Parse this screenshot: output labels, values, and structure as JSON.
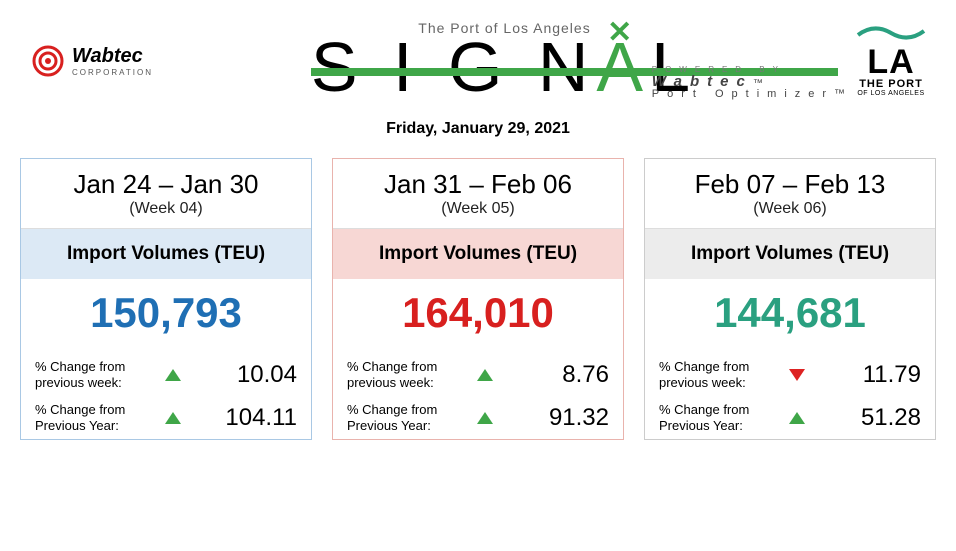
{
  "header": {
    "subtitle": "The Port of Los Angeles",
    "title_plain": "SIGNAL",
    "powered_by_small": "POWERED BY",
    "powered_by_brand": "Wabtec",
    "powered_by_product": "Port Optimizer™",
    "wabtec_brand": "Wabtec",
    "wabtec_sub": "CORPORATION",
    "la_main": "LA",
    "la_port": "THE PORT",
    "la_sub": "OF LOS ANGELES",
    "date": "Friday, January 29, 2021"
  },
  "colors": {
    "blue": "#1f6fb4",
    "red": "#d8201f",
    "green": "#2aa080",
    "accent_green": "#3fa648",
    "band_blue": "#dce9f5",
    "band_red": "#f7d7d4",
    "band_grey": "#ececec",
    "border_blue": "#a9c8e4",
    "border_red": "#e9b3ad",
    "border_grey": "#cccccc"
  },
  "cards": [
    {
      "range": "Jan 24 – Jan 30",
      "week": "(Week 04)",
      "band_label": "Import Volumes (TEU)",
      "value": "150,793",
      "value_color": "#1f6fb4",
      "band_bg": "#dce9f5",
      "border": "#a9c8e4",
      "deltas": [
        {
          "label_l1": "% Change from",
          "label_l2": "previous week:",
          "dir": "up",
          "val": "10.04"
        },
        {
          "label_l1": "% Change from",
          "label_l2": "Previous Year:",
          "dir": "up",
          "val": "104.11"
        }
      ]
    },
    {
      "range": "Jan 31 – Feb 06",
      "week": "(Week 05)",
      "band_label": "Import Volumes (TEU)",
      "value": "164,010",
      "value_color": "#d8201f",
      "band_bg": "#f7d7d4",
      "border": "#e9b3ad",
      "deltas": [
        {
          "label_l1": "% Change from",
          "label_l2": "previous week:",
          "dir": "up",
          "val": "8.76"
        },
        {
          "label_l1": "% Change from",
          "label_l2": "Previous Year:",
          "dir": "up",
          "val": "91.32"
        }
      ]
    },
    {
      "range": "Feb 07 – Feb 13",
      "week": "(Week 06)",
      "band_label": "Import Volumes (TEU)",
      "value": "144,681",
      "value_color": "#2aa080",
      "band_bg": "#ececec",
      "border": "#cccccc",
      "deltas": [
        {
          "label_l1": "% Change from",
          "label_l2": "previous week:",
          "dir": "down",
          "val": "11.79"
        },
        {
          "label_l1": "% Change from",
          "label_l2": "Previous Year:",
          "dir": "up",
          "val": "51.28"
        }
      ]
    }
  ]
}
